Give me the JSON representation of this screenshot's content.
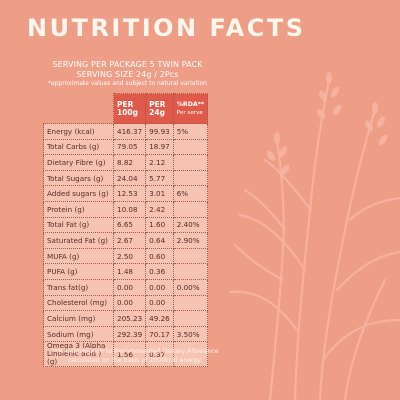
{
  "title": "NUTRITION FACTS",
  "serving": {
    "line1": "SERVING PER PACKAGE 5 TWIN PACK",
    "line2": "SERVING SIZE 24g / 2Pcs",
    "note": "*approximate values and subject to natural variation"
  },
  "table": {
    "headers": {
      "col2_a": "PER",
      "col2_b": "100g",
      "col3_a": "PER",
      "col3_b": "24g",
      "col4_a": "%RDA**",
      "col4_b": "Per serve"
    },
    "rows": [
      {
        "name": "Energy (kcal)",
        "per100": "416.37",
        "per24": "99.93",
        "rda": "5%"
      },
      {
        "name": "Total Carbs (g)",
        "per100": "79.05",
        "per24": "18.97",
        "rda": ""
      },
      {
        "name": "Dietary Fibre (g)",
        "per100": "8.82",
        "per24": "2.12",
        "rda": ""
      },
      {
        "name": "Total Sugars (g)",
        "per100": "24.04",
        "per24": "5.77",
        "rda": ""
      },
      {
        "name": "Added sugars (g)",
        "per100": "12.53",
        "per24": "3.01",
        "rda": "6%"
      },
      {
        "name": "Protein (g)",
        "per100": "10.08",
        "per24": "2.42",
        "rda": ""
      },
      {
        "name": "Total Fat (g)",
        "per100": "6.65",
        "per24": "1.60",
        "rda": "2.40%"
      },
      {
        "name": "Saturated Fat (g)",
        "per100": "2.67",
        "per24": "0.64",
        "rda": "2.90%"
      },
      {
        "name": "MUFA (g)",
        "per100": "2.50",
        "per24": "0.60",
        "rda": ""
      },
      {
        "name": "PUFA (g)",
        "per100": "1.48",
        "per24": "0.36",
        "rda": ""
      },
      {
        "name": "Trans fat(g)",
        "per100": "0.00",
        "per24": "0.00",
        "rda": "0.00%"
      },
      {
        "name": "Cholesterol (mg)",
        "per100": "0.00",
        "per24": "0.00",
        "rda": ""
      },
      {
        "name": "Calcium (mg)",
        "per100": "205.23",
        "per24": "49.26",
        "rda": ""
      },
      {
        "name": "Sodium (mg)",
        "per100": "292.39",
        "per24": "70.17",
        "rda": "3.50%"
      },
      {
        "name": "Omega 3 (Alpha Linolenic acid )(g)",
        "per100": "1.56",
        "per24": "0.37",
        "rda": ""
      }
    ]
  },
  "footnote": "**% Contribution to Recommended Dietary Allowance calculated on the basis of 2000kcal energy.",
  "colors": {
    "background": "#ee9d87",
    "header": "#e05a4c",
    "table_fill": "#f6c3b3",
    "plant": "#f1a08d"
  },
  "decoration": "plant-illustration"
}
